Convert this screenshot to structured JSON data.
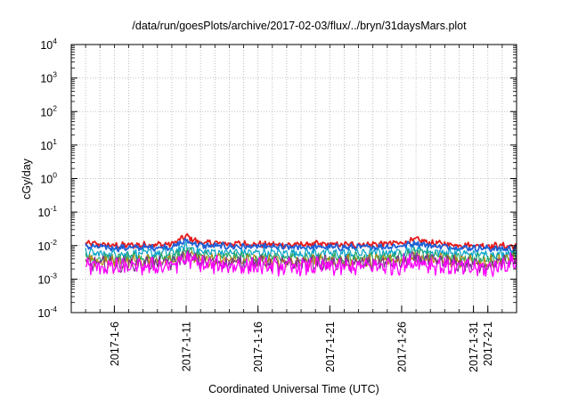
{
  "chart_data": {
    "type": "line",
    "title": "/data/run/goesPlots/archive/2017-02-03/flux/../bryn/31daysMars.plot",
    "xlabel": "Coordinated Universal Time (UTC)",
    "ylabel": "cGy/day",
    "yscale": "log",
    "ylim": [
      0.0001,
      10000
    ],
    "xlim": [
      "2017-01-03",
      "2017-02-03"
    ],
    "grid": true,
    "y_ticks": [
      {
        "base": "10",
        "exp": "-4",
        "value": 0.0001
      },
      {
        "base": "10",
        "exp": "-3",
        "value": 0.001
      },
      {
        "base": "10",
        "exp": "-2",
        "value": 0.01
      },
      {
        "base": "10",
        "exp": "-1",
        "value": 0.1
      },
      {
        "base": "10",
        "exp": "0",
        "value": 1
      },
      {
        "base": "10",
        "exp": "1",
        "value": 10
      },
      {
        "base": "10",
        "exp": "2",
        "value": 100
      },
      {
        "base": "10",
        "exp": "3",
        "value": 1000
      },
      {
        "base": "10",
        "exp": "4",
        "value": 10000
      }
    ],
    "x_ticks": [
      "2017-1-6",
      "2017-1-11",
      "2017-1-16",
      "2017-1-21",
      "2017-1-26",
      "2017-1-31",
      "2017-2-1"
    ],
    "x_tick_dates": [
      "2017-01-06",
      "2017-01-11",
      "2017-01-16",
      "2017-01-21",
      "2017-01-26",
      "2017-01-31",
      "2017-02-01"
    ],
    "dates": [
      "2017-01-04",
      "2017-01-06",
      "2017-01-08",
      "2017-01-10",
      "2017-01-11",
      "2017-01-12",
      "2017-01-14",
      "2017-01-16",
      "2017-01-18",
      "2017-01-20",
      "2017-01-22",
      "2017-01-24",
      "2017-01-26",
      "2017-01-27",
      "2017-01-28",
      "2017-01-30",
      "2017-02-01",
      "2017-02-03"
    ],
    "series": [
      {
        "color": "#e41a1c",
        "width": 1.8,
        "jitter": 0.08,
        "values": [
          0.0115,
          0.01,
          0.0105,
          0.011,
          0.019,
          0.012,
          0.0115,
          0.011,
          0.0105,
          0.011,
          0.0105,
          0.011,
          0.012,
          0.015,
          0.012,
          0.0105,
          0.01,
          0.0095
        ]
      },
      {
        "color": "#1f5fd6",
        "width": 1.8,
        "jitter": 0.08,
        "values": [
          0.0095,
          0.0085,
          0.0088,
          0.009,
          0.014,
          0.01,
          0.0095,
          0.0092,
          0.0088,
          0.009,
          0.0088,
          0.009,
          0.0098,
          0.012,
          0.01,
          0.0088,
          0.0082,
          0.0078
        ]
      },
      {
        "color": "#00a0c8",
        "width": 1.2,
        "jitter": 0.12,
        "values": [
          0.006,
          0.0055,
          0.0058,
          0.006,
          0.0095,
          0.0065,
          0.0062,
          0.006,
          0.0058,
          0.006,
          0.0058,
          0.006,
          0.0065,
          0.008,
          0.0066,
          0.0058,
          0.0054,
          0.006
        ]
      },
      {
        "color": "#2aa86a",
        "width": 1.2,
        "jitter": 0.14,
        "values": [
          0.0045,
          0.004,
          0.0042,
          0.0045,
          0.007,
          0.0048,
          0.0046,
          0.0044,
          0.0042,
          0.0044,
          0.0042,
          0.0044,
          0.0048,
          0.006,
          0.0049,
          0.0042,
          0.0039,
          0.005
        ]
      },
      {
        "color": "#b8860b",
        "width": 1.1,
        "jitter": 0.16,
        "values": [
          0.0035,
          0.0032,
          0.0034,
          0.0036,
          0.0055,
          0.0038,
          0.0036,
          0.0035,
          0.0033,
          0.0035,
          0.0033,
          0.0035,
          0.0038,
          0.0048,
          0.0039,
          0.0033,
          0.0031,
          0.0042
        ]
      },
      {
        "color": "#7b2d8e",
        "width": 1.1,
        "jitter": 0.18,
        "values": [
          0.003,
          0.0027,
          0.0029,
          0.003,
          0.0048,
          0.0032,
          0.0031,
          0.003,
          0.0028,
          0.003,
          0.0028,
          0.003,
          0.0033,
          0.0042,
          0.0034,
          0.0028,
          0.0026,
          0.0036
        ]
      },
      {
        "color": "#ff00ff",
        "width": 1.3,
        "jitter": 0.22,
        "values": [
          0.0025,
          0.0022,
          0.0023,
          0.0025,
          0.004,
          0.0027,
          0.0025,
          0.0024,
          0.0022,
          0.0024,
          0.0022,
          0.0024,
          0.0026,
          0.0034,
          0.0027,
          0.0022,
          0.002,
          0.0035
        ]
      }
    ]
  }
}
